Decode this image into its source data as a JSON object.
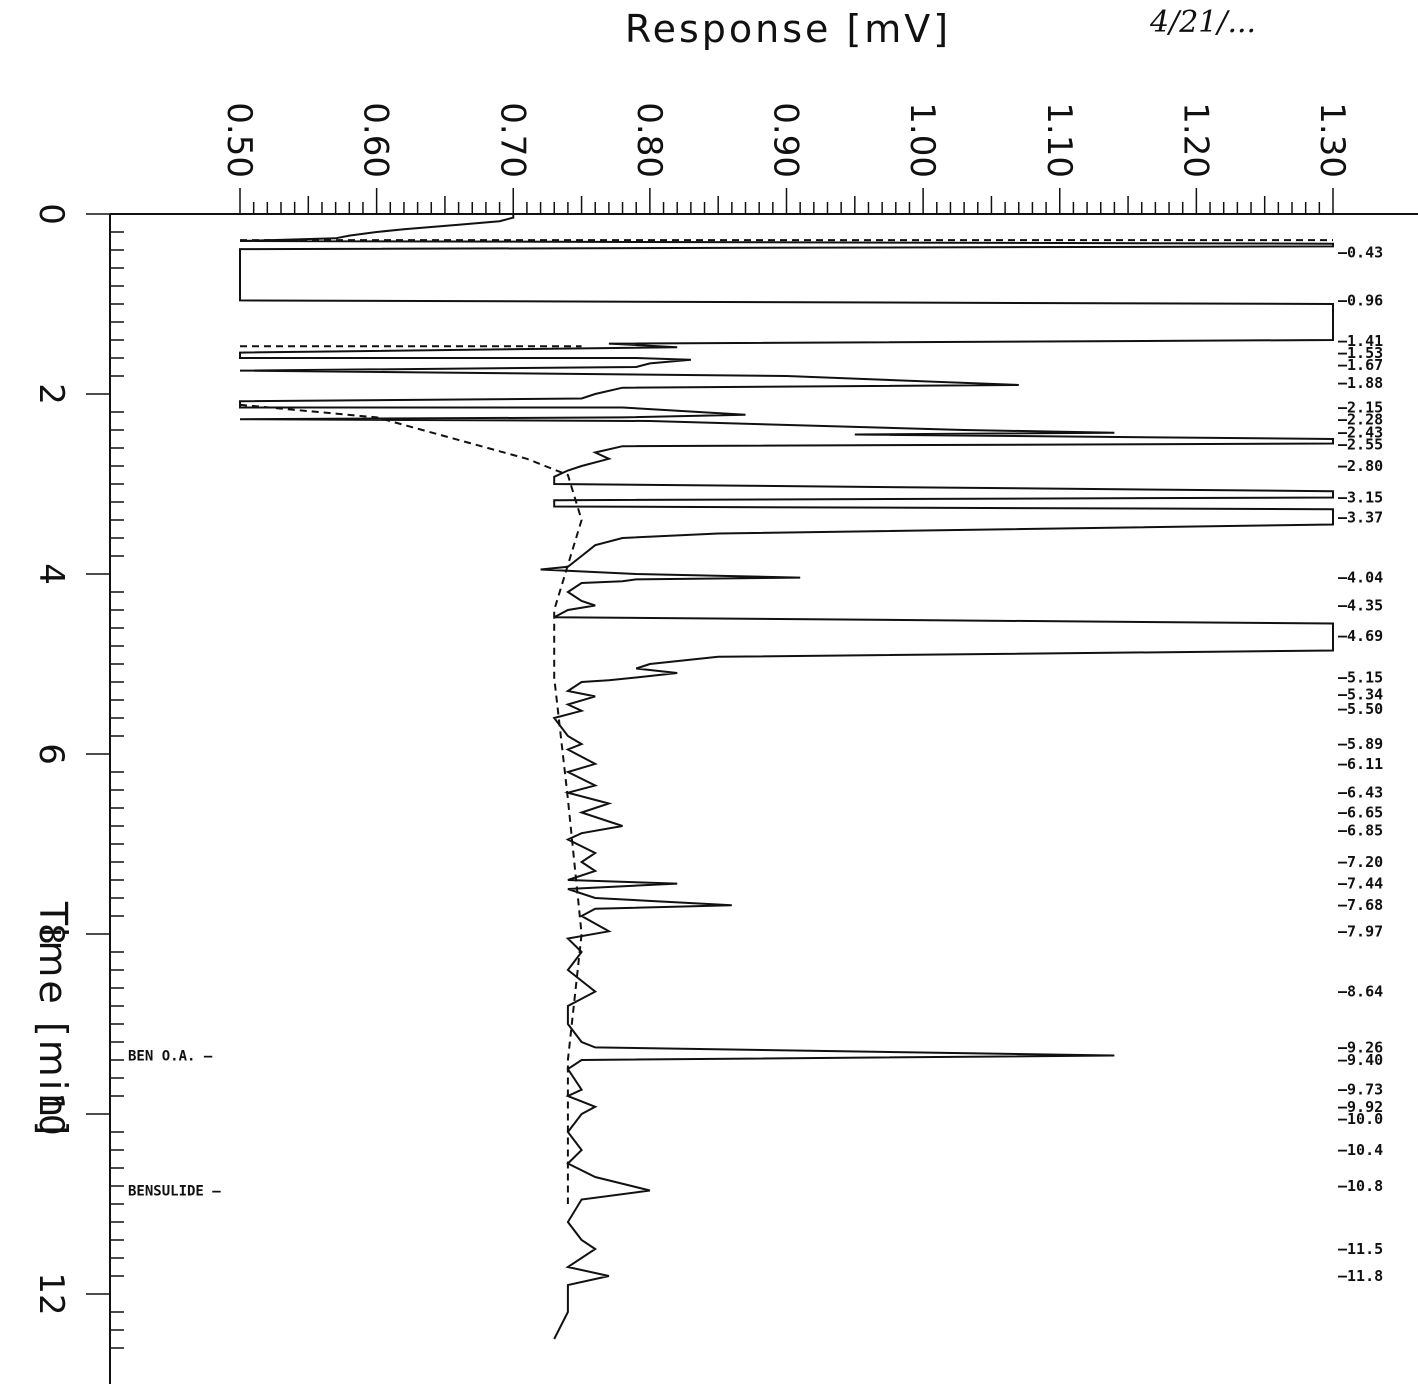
{
  "chart_data": {
    "type": "line",
    "orientation": "rotated: time on vertical axis (down), response on horizontal axis",
    "title": "",
    "xlabel": "Response [mV]",
    "ylabel": "Time [min]",
    "xlim": [
      0.5,
      1.3
    ],
    "ylim": [
      0,
      12.5
    ],
    "x_ticks": [
      "0.50",
      "0.60",
      "0.70",
      "0.80",
      "0.90",
      "1.00",
      "1.10",
      "1.20",
      "1.30"
    ],
    "y_ticks": [
      "0",
      "2",
      "4",
      "6",
      "8",
      "10",
      "12"
    ],
    "annotation": "4/21/...",
    "compounds": [
      {
        "name": "BEN O.A.",
        "time": 9.35
      },
      {
        "name": "BENSULIDE",
        "time": 10.85
      }
    ],
    "retention_labels": [
      "0.43",
      "0.96",
      "1.41",
      "1.53",
      "1.67",
      "1.88",
      "2.15",
      "2.28",
      "2.43",
      "2.55",
      "2.80",
      "3.15",
      "3.37",
      "4.04",
      "4.35",
      "4.69",
      "5.15",
      "5.34",
      "5.50",
      "5.89",
      "6.11",
      "6.43",
      "6.65",
      "6.85",
      "7.20",
      "7.44",
      "7.68",
      "7.97",
      "8.64",
      "9.26",
      "9.40",
      "9.73",
      "9.92",
      "10.0",
      "10.4",
      "10.8",
      "11.5",
      "11.8"
    ],
    "series": [
      {
        "points": [
          [
            0.7,
            0.0
          ],
          [
            0.7,
            0.04
          ],
          [
            0.69,
            0.08
          ],
          [
            0.66,
            0.12
          ],
          [
            0.62,
            0.17
          ],
          [
            0.6,
            0.2
          ],
          [
            0.58,
            0.24
          ],
          [
            0.57,
            0.27
          ],
          [
            0.5,
            0.3
          ],
          [
            1.3,
            0.33
          ],
          [
            1.3,
            0.36
          ],
          [
            0.5,
            0.39
          ],
          [
            0.5,
            0.96
          ],
          [
            1.3,
            1.0
          ],
          [
            1.3,
            1.4
          ],
          [
            0.77,
            1.44
          ],
          [
            0.82,
            1.48
          ],
          [
            0.5,
            1.54
          ],
          [
            0.5,
            1.6
          ],
          [
            0.79,
            1.6
          ],
          [
            0.83,
            1.62
          ],
          [
            0.8,
            1.66
          ],
          [
            0.79,
            1.7
          ],
          [
            0.5,
            1.74
          ],
          [
            0.9,
            1.8
          ],
          [
            1.07,
            1.9
          ],
          [
            0.78,
            1.93
          ],
          [
            0.76,
            2.0
          ],
          [
            0.75,
            2.05
          ],
          [
            0.5,
            2.08
          ],
          [
            0.5,
            2.15
          ],
          [
            0.78,
            2.15
          ],
          [
            0.87,
            2.23
          ],
          [
            0.78,
            2.26
          ],
          [
            0.5,
            2.28
          ],
          [
            0.8,
            2.3
          ],
          [
            1.03,
            2.4
          ],
          [
            1.14,
            2.43
          ],
          [
            0.95,
            2.45
          ],
          [
            1.3,
            2.5
          ],
          [
            1.3,
            2.55
          ],
          [
            0.78,
            2.58
          ],
          [
            0.76,
            2.65
          ],
          [
            0.77,
            2.72
          ],
          [
            0.75,
            2.8
          ],
          [
            0.74,
            2.85
          ],
          [
            0.73,
            2.92
          ],
          [
            0.73,
            3.0
          ],
          [
            1.3,
            3.08
          ],
          [
            1.3,
            3.15
          ],
          [
            0.73,
            3.18
          ],
          [
            0.73,
            3.25
          ],
          [
            1.3,
            3.28
          ],
          [
            1.3,
            3.45
          ],
          [
            0.85,
            3.55
          ],
          [
            0.78,
            3.6
          ],
          [
            0.76,
            3.68
          ],
          [
            0.75,
            3.8
          ],
          [
            0.74,
            3.92
          ],
          [
            0.72,
            3.95
          ],
          [
            0.79,
            4.0
          ],
          [
            0.91,
            4.04
          ],
          [
            0.79,
            4.06
          ],
          [
            0.78,
            4.08
          ],
          [
            0.75,
            4.1
          ],
          [
            0.74,
            4.2
          ],
          [
            0.75,
            4.3
          ],
          [
            0.76,
            4.35
          ],
          [
            0.74,
            4.4
          ],
          [
            0.73,
            4.48
          ],
          [
            1.3,
            4.55
          ],
          [
            1.3,
            4.85
          ],
          [
            0.85,
            4.92
          ],
          [
            0.8,
            5.0
          ],
          [
            0.79,
            5.05
          ],
          [
            0.82,
            5.1
          ],
          [
            0.79,
            5.15
          ],
          [
            0.77,
            5.18
          ],
          [
            0.75,
            5.2
          ],
          [
            0.74,
            5.3
          ],
          [
            0.76,
            5.36
          ],
          [
            0.74,
            5.45
          ],
          [
            0.75,
            5.52
          ],
          [
            0.73,
            5.6
          ],
          [
            0.74,
            5.8
          ],
          [
            0.75,
            5.89
          ],
          [
            0.74,
            5.95
          ],
          [
            0.76,
            6.11
          ],
          [
            0.74,
            6.2
          ],
          [
            0.76,
            6.35
          ],
          [
            0.74,
            6.43
          ],
          [
            0.77,
            6.55
          ],
          [
            0.75,
            6.65
          ],
          [
            0.78,
            6.8
          ],
          [
            0.75,
            6.88
          ],
          [
            0.74,
            6.95
          ],
          [
            0.76,
            7.1
          ],
          [
            0.75,
            7.2
          ],
          [
            0.76,
            7.3
          ],
          [
            0.74,
            7.4
          ],
          [
            0.82,
            7.44
          ],
          [
            0.74,
            7.5
          ],
          [
            0.76,
            7.6
          ],
          [
            0.86,
            7.68
          ],
          [
            0.76,
            7.72
          ],
          [
            0.75,
            7.8
          ],
          [
            0.77,
            7.97
          ],
          [
            0.74,
            8.05
          ],
          [
            0.75,
            8.2
          ],
          [
            0.74,
            8.4
          ],
          [
            0.76,
            8.64
          ],
          [
            0.74,
            8.8
          ],
          [
            0.74,
            9.0
          ],
          [
            0.75,
            9.2
          ],
          [
            0.76,
            9.26
          ],
          [
            1.14,
            9.35
          ],
          [
            0.75,
            9.4
          ],
          [
            0.74,
            9.5
          ],
          [
            0.75,
            9.73
          ],
          [
            0.74,
            9.8
          ],
          [
            0.76,
            9.92
          ],
          [
            0.75,
            10.0
          ],
          [
            0.74,
            10.2
          ],
          [
            0.75,
            10.4
          ],
          [
            0.74,
            10.55
          ],
          [
            0.76,
            10.7
          ],
          [
            0.8,
            10.85
          ],
          [
            0.75,
            10.95
          ],
          [
            0.74,
            11.2
          ],
          [
            0.75,
            11.4
          ],
          [
            0.76,
            11.5
          ],
          [
            0.74,
            11.7
          ],
          [
            0.77,
            11.8
          ],
          [
            0.74,
            11.9
          ],
          [
            0.74,
            12.2
          ],
          [
            0.73,
            12.5
          ]
        ]
      }
    ],
    "baseline": [
      [
        0.5,
        0.29
      ],
      [
        1.3,
        0.29
      ],
      [
        0.5,
        1.47
      ],
      [
        0.75,
        1.47
      ],
      [
        0.5,
        2.12
      ],
      [
        0.6,
        2.26
      ],
      [
        0.71,
        2.72
      ],
      [
        0.74,
        2.9
      ],
      [
        0.75,
        3.4
      ],
      [
        0.73,
        4.4
      ],
      [
        0.73,
        5.15
      ],
      [
        0.74,
        6.5
      ],
      [
        0.75,
        8.0
      ],
      [
        0.74,
        9.4
      ],
      [
        0.74,
        11.0
      ]
    ]
  }
}
